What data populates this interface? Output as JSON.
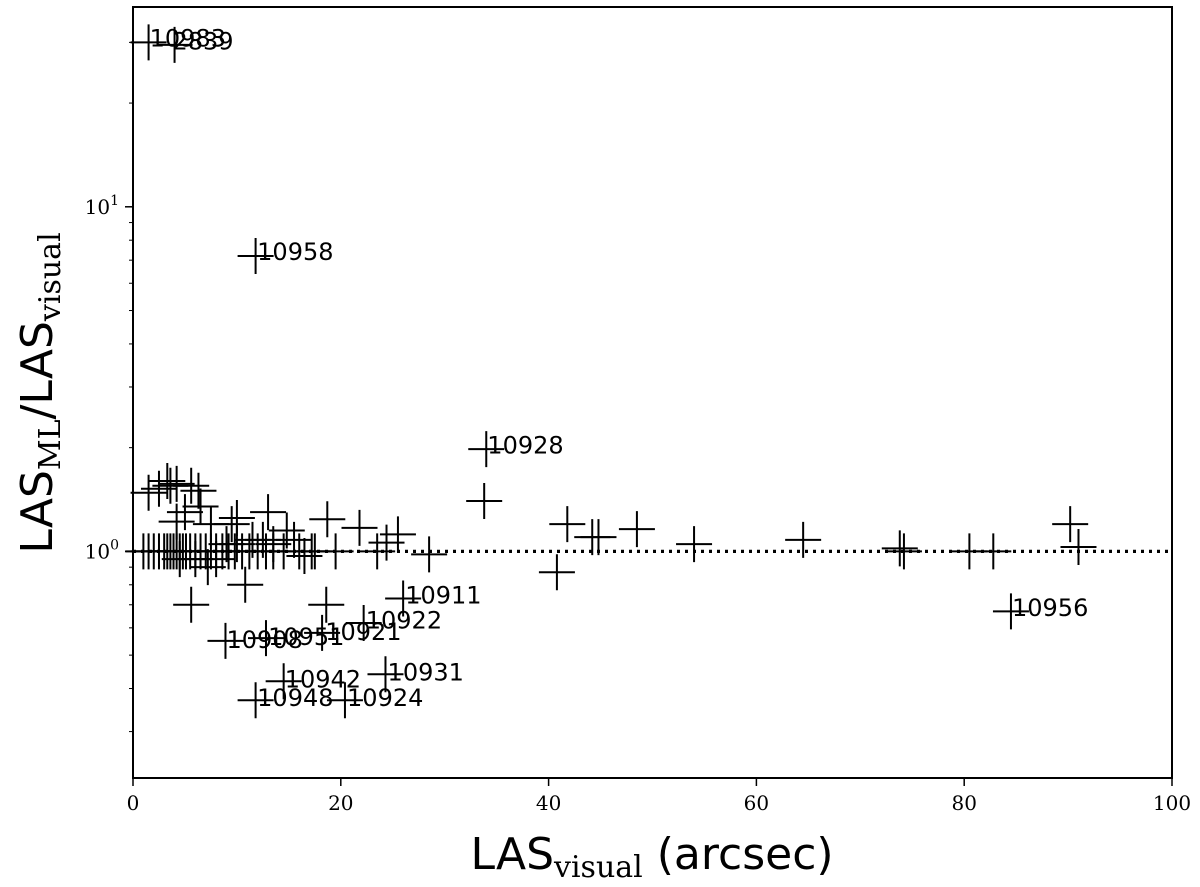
{
  "chart_data": {
    "type": "scatter",
    "marker": "plus",
    "xlabel": {
      "base": "LAS",
      "sub": "visual",
      "suffix": " (arcsec)"
    },
    "ylabel": {
      "base1": "LAS",
      "sub1": "ML",
      "mid": "/LAS",
      "sub2": "visual"
    },
    "x_scale": "linear",
    "y_scale": "log",
    "xlim": [
      0,
      100
    ],
    "ylim": [
      0.22,
      38
    ],
    "x_ticks": [
      0,
      20,
      40,
      60,
      80,
      100
    ],
    "x_tick_labels": [
      "0",
      "20",
      "40",
      "60",
      "80",
      "100"
    ],
    "y_ticks": [
      1,
      10
    ],
    "y_tick_base": "10",
    "y_tick_exps": [
      "0",
      "1"
    ],
    "reference_line": {
      "y": 1.0,
      "style": "dotted"
    },
    "grid": false,
    "points": [
      [
        1.5,
        30
      ],
      [
        4,
        29.5
      ],
      [
        11.8,
        7.2
      ],
      [
        34,
        1.98
      ],
      [
        33.8,
        1.4
      ],
      [
        1.5,
        1.48
      ],
      [
        2.5,
        1.52
      ],
      [
        3.3,
        1.6
      ],
      [
        3.6,
        1.55
      ],
      [
        4.2,
        1.57
      ],
      [
        5.6,
        1.55
      ],
      [
        6.3,
        1.5
      ],
      [
        5,
        1.3
      ],
      [
        6.5,
        1.35
      ],
      [
        10,
        1.25
      ],
      [
        13,
        1.3
      ],
      [
        18.7,
        1.24
      ],
      [
        21.8,
        1.17
      ],
      [
        25.5,
        1.12
      ],
      [
        24.4,
        1.06
      ],
      [
        4.2,
        1.22
      ],
      [
        7.5,
        1.2
      ],
      [
        9.5,
        1.2
      ],
      [
        14.8,
        1.15
      ],
      [
        1,
        1.0
      ],
      [
        1.5,
        1.0
      ],
      [
        2,
        1.0
      ],
      [
        2.5,
        1.0
      ],
      [
        3,
        1.0
      ],
      [
        3.3,
        1.0
      ],
      [
        3.6,
        1.0
      ],
      [
        3.9,
        1.0
      ],
      [
        4.2,
        1.0
      ],
      [
        4.5,
        1.0
      ],
      [
        4.8,
        1.0
      ],
      [
        5.1,
        1.0
      ],
      [
        5.5,
        1.0
      ],
      [
        6,
        1.0
      ],
      [
        6.5,
        1.0
      ],
      [
        7,
        1.0
      ],
      [
        7.5,
        1.0
      ],
      [
        8,
        1.0
      ],
      [
        8.6,
        1.0
      ],
      [
        9.2,
        1.0
      ],
      [
        9.8,
        1.0
      ],
      [
        10.5,
        1.0
      ],
      [
        11.2,
        1.0
      ],
      [
        12,
        1.0
      ],
      [
        12.8,
        1.0
      ],
      [
        13.5,
        1.0
      ],
      [
        14.5,
        1.0
      ],
      [
        16,
        1.0
      ],
      [
        17.2,
        1.0
      ],
      [
        19.5,
        1.0
      ],
      [
        4.5,
        0.95
      ],
      [
        6,
        0.95
      ],
      [
        7.2,
        0.9
      ],
      [
        8,
        0.95
      ],
      [
        9,
        1.05
      ],
      [
        10,
        1.05
      ],
      [
        11.5,
        1.08
      ],
      [
        12.5,
        1.08
      ],
      [
        13.5,
        1.05
      ],
      [
        15.5,
        1.08
      ],
      [
        16.5,
        0.97
      ],
      [
        17.5,
        1.0
      ],
      [
        23.5,
        1.0
      ],
      [
        28.5,
        0.98
      ],
      [
        5.6,
        0.7
      ],
      [
        10.8,
        0.8
      ],
      [
        18.6,
        0.7
      ],
      [
        40.8,
        0.87
      ],
      [
        41.8,
        1.2
      ],
      [
        44.2,
        1.1
      ],
      [
        44.8,
        1.1
      ],
      [
        48.5,
        1.16
      ],
      [
        54,
        1.05
      ],
      [
        64.5,
        1.08
      ],
      [
        73.8,
        1.02
      ],
      [
        74.2,
        1.0
      ],
      [
        80.5,
        1.0
      ],
      [
        82.8,
        1.0
      ],
      [
        90.2,
        1.2
      ],
      [
        91,
        1.03
      ],
      [
        84.5,
        0.67
      ],
      [
        26,
        0.73
      ],
      [
        22.2,
        0.62
      ],
      [
        18.2,
        0.58
      ],
      [
        12.8,
        0.56
      ],
      [
        8.9,
        0.55
      ],
      [
        24.3,
        0.44
      ],
      [
        14.5,
        0.42
      ],
      [
        20.4,
        0.37
      ],
      [
        11.8,
        0.37
      ]
    ],
    "annotations": [
      {
        "label": "10983",
        "x": 1.6,
        "y": 30.8
      },
      {
        "label": "2839",
        "x": 3.8,
        "y": 30.2
      },
      {
        "label": "10958",
        "x": 11.95,
        "y": 7.4
      },
      {
        "label": "10928",
        "x": 34.1,
        "y": 2.03
      },
      {
        "label": "10911",
        "x": 26.2,
        "y": 0.745
      },
      {
        "label": "10922",
        "x": 22.4,
        "y": 0.63
      },
      {
        "label": "10921",
        "x": 18.5,
        "y": 0.583
      },
      {
        "label": "10951",
        "x": 13,
        "y": 0.565
      },
      {
        "label": "10908",
        "x": 9,
        "y": 0.553
      },
      {
        "label": "10931",
        "x": 24.5,
        "y": 0.445
      },
      {
        "label": "10942",
        "x": 14.6,
        "y": 0.425
      },
      {
        "label": "10924",
        "x": 20.6,
        "y": 0.375
      },
      {
        "label": "10948",
        "x": 11.95,
        "y": 0.375
      },
      {
        "label": "10956",
        "x": 84.6,
        "y": 0.685
      }
    ]
  }
}
